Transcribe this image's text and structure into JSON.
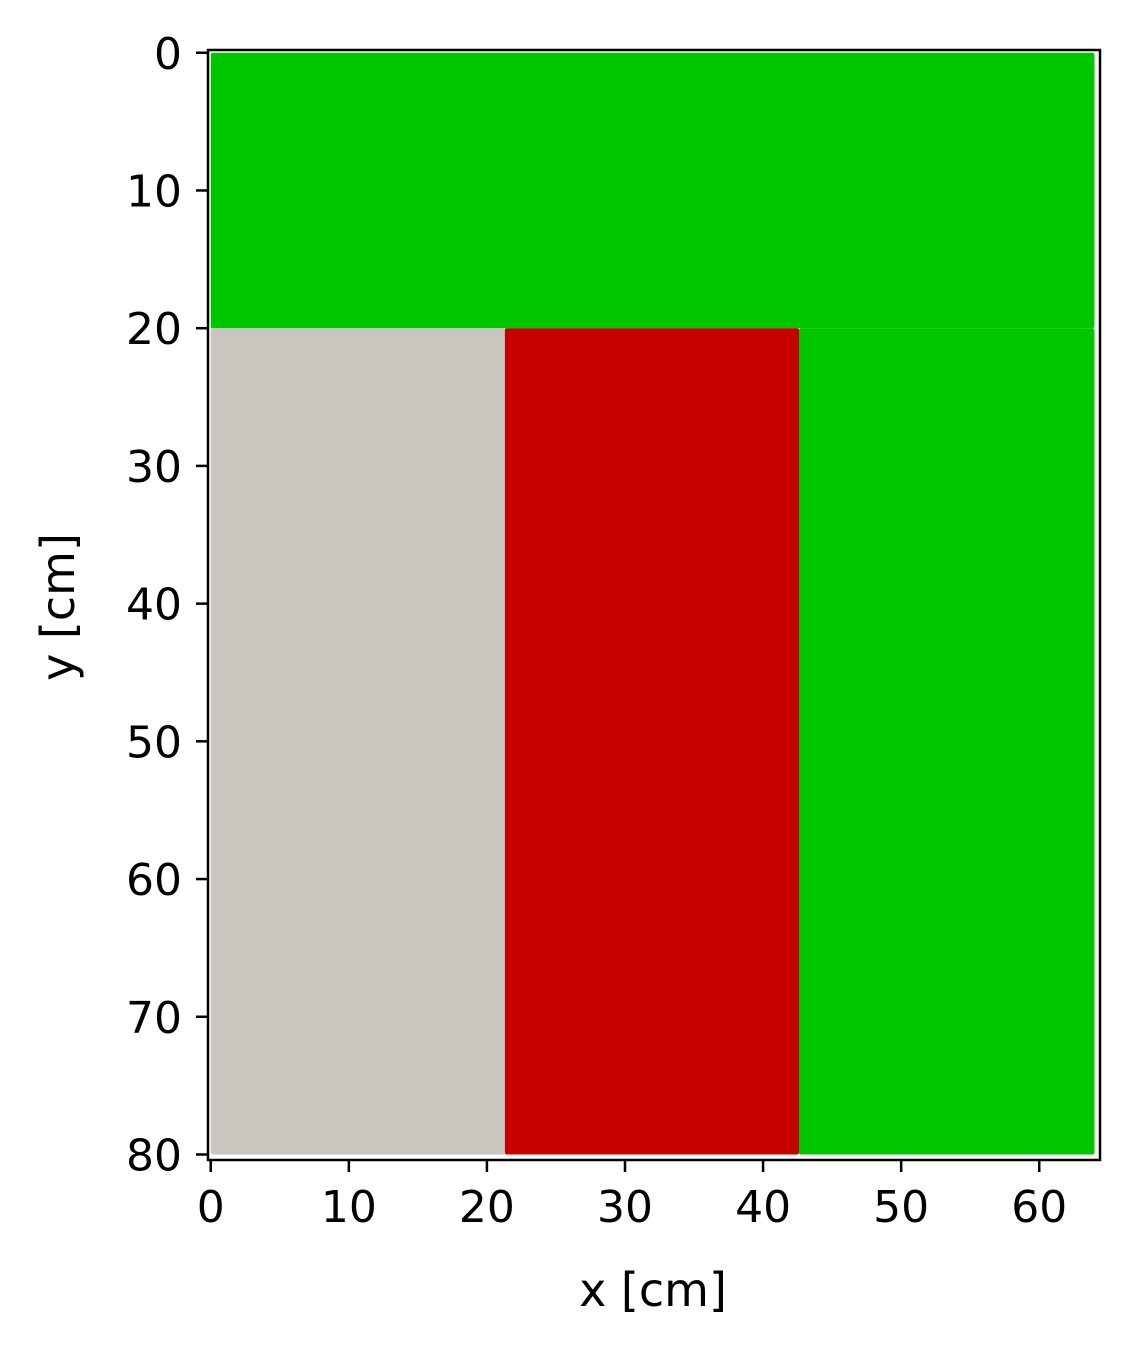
{
  "chart_data": {
    "type": "heatmap",
    "title": "",
    "xlabel": "x [cm]",
    "ylabel": "y [cm]",
    "xlim": [
      -0.2,
      64.4
    ],
    "ylim": [
      80.4,
      -0.2
    ],
    "y_inverted": true,
    "grid": false,
    "xticks": [
      0,
      10,
      20,
      30,
      40,
      50,
      60
    ],
    "yticks": [
      0,
      10,
      20,
      30,
      40,
      50,
      60,
      70,
      80
    ],
    "regions": [
      {
        "x": [
          0,
          64
        ],
        "y": [
          0,
          20
        ],
        "color": "#00c600"
      },
      {
        "x": [
          0,
          21.3
        ],
        "y": [
          20,
          80
        ],
        "color": "#c8c6be"
      },
      {
        "x": [
          21.3,
          42.6
        ],
        "y": [
          20,
          80
        ],
        "color": "#c60000"
      },
      {
        "x": [
          42.6,
          64
        ],
        "y": [
          20,
          80
        ],
        "color": "#00c600"
      }
    ]
  }
}
